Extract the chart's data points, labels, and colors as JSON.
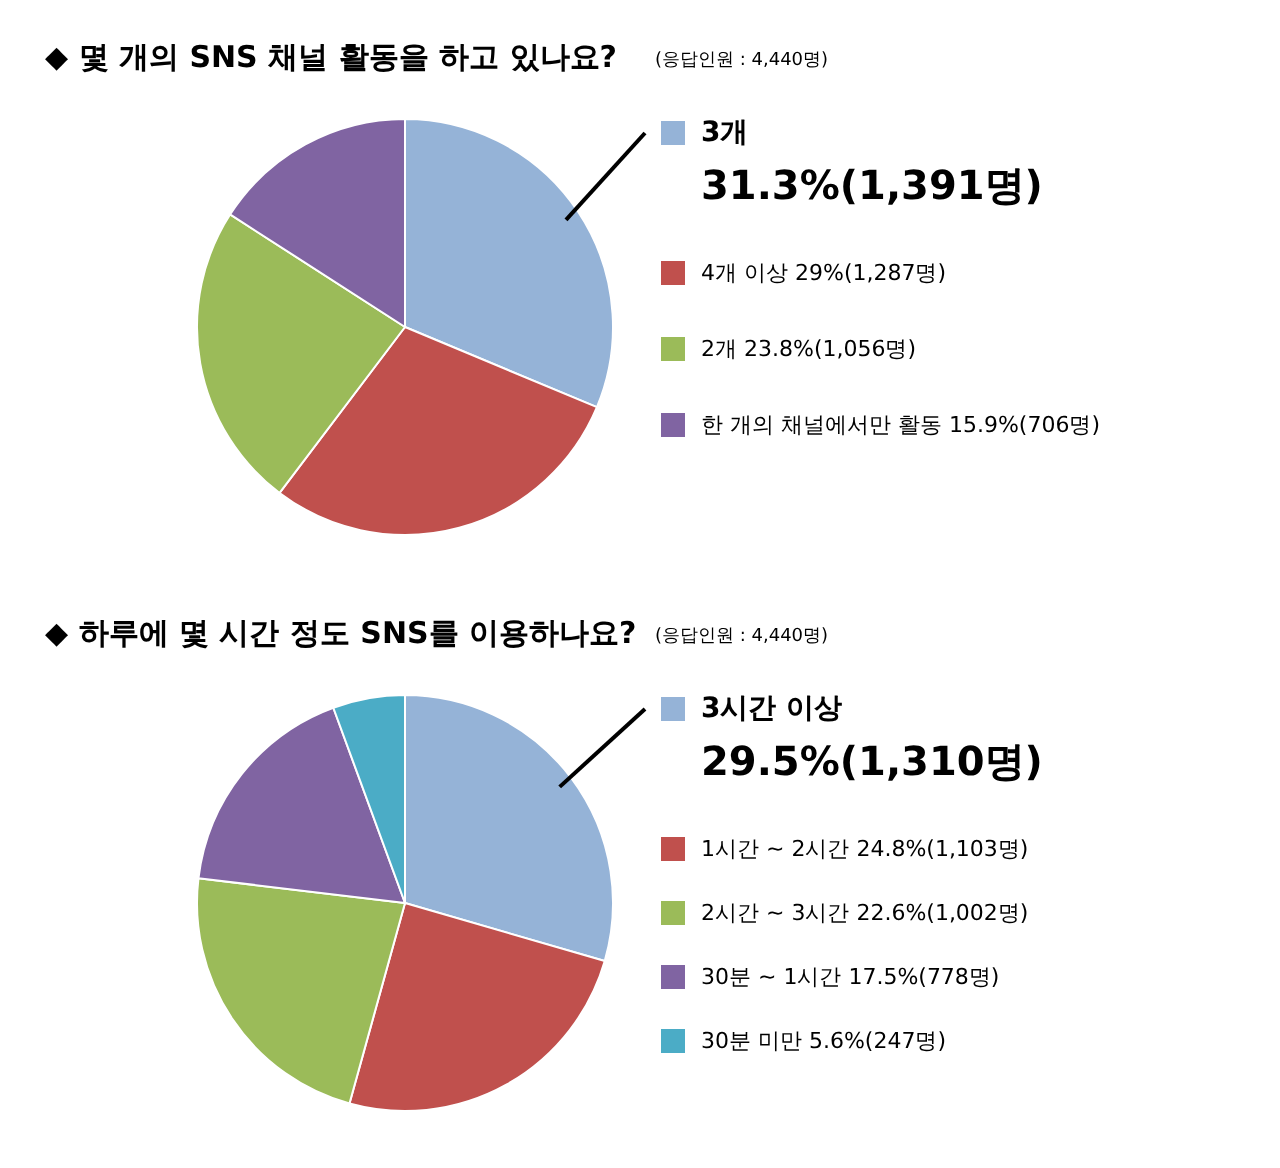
{
  "chart_data": [
    {
      "type": "pie",
      "title": "◆ 몇 개의 SNS 채널 활동을 하고 있나요?",
      "subtitle": "(응답인원 : 4,440명)",
      "categories": [
        "3개",
        "4개 이상",
        "2개",
        "한 개의 채널에서만 활동"
      ],
      "values": [
        31.3,
        29,
        23.8,
        15.9
      ],
      "value_labels": [
        "31.3%(1,391명)",
        "29%(1,287명)",
        "23.8%(1,056명)",
        "15.9%(706명)"
      ],
      "colors": [
        "#95b3d7",
        "#c0504d",
        "#9bbb59",
        "#8064a2"
      ],
      "legend": "right"
    },
    {
      "type": "pie",
      "title": "◆ 하루에 몇 시간 정도 SNS를 이용하나요?",
      "subtitle": "(응답인원 : 4,440명)",
      "categories": [
        "3시간 이상",
        "1시간 ~ 2시간",
        "2시간 ~ 3시간",
        "30분 ~ 1시간",
        "30분 미만"
      ],
      "values": [
        29.5,
        24.8,
        22.6,
        17.5,
        5.6
      ],
      "value_labels": [
        "29.5%(1,310명)",
        "24.8%(1,103명)",
        "22.6%(1,002명)",
        "17.5%(778명)",
        "5.6%(247명)"
      ],
      "colors": [
        "#95b3d7",
        "#c0504d",
        "#9bbb59",
        "#8064a2",
        "#4bacc6"
      ],
      "legend": "right"
    }
  ]
}
